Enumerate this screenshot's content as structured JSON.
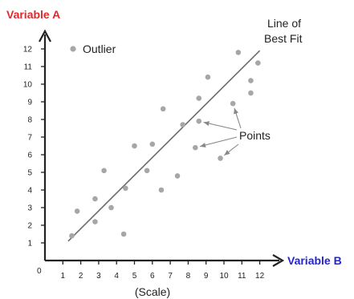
{
  "chart_data": {
    "type": "scatter",
    "xlabel": "Variable B",
    "ylabel": "Variable A",
    "x_scale_label": "(Scale)",
    "origin_label": "0",
    "x_ticks": [
      "1",
      "2",
      "3",
      "4",
      "5",
      "6",
      "7",
      "8",
      "9",
      "10",
      "11",
      "12"
    ],
    "y_ticks": [
      "1",
      "2",
      "3",
      "4",
      "5",
      "6",
      "7",
      "8",
      "9",
      "10",
      "11",
      "12"
    ],
    "xlim": [
      0,
      12.6
    ],
    "ylim": [
      0,
      12.9
    ],
    "grid": false,
    "series": [
      {
        "points": [
          {
            "x": 1.5,
            "y": 1.4
          },
          {
            "x": 1.8,
            "y": 2.8
          },
          {
            "x": 2.8,
            "y": 3.5
          },
          {
            "x": 2.8,
            "y": 2.2
          },
          {
            "x": 3.3,
            "y": 5.1
          },
          {
            "x": 3.7,
            "y": 3.0
          },
          {
            "x": 4.4,
            "y": 1.5
          },
          {
            "x": 4.5,
            "y": 4.1
          },
          {
            "x": 5.0,
            "y": 6.5
          },
          {
            "x": 5.7,
            "y": 5.1
          },
          {
            "x": 6.0,
            "y": 6.6
          },
          {
            "x": 6.5,
            "y": 4.0
          },
          {
            "x": 6.6,
            "y": 8.6
          },
          {
            "x": 7.4,
            "y": 4.8
          },
          {
            "x": 7.7,
            "y": 7.7
          },
          {
            "x": 8.4,
            "y": 6.4
          },
          {
            "x": 8.6,
            "y": 7.9
          },
          {
            "x": 8.6,
            "y": 9.2
          },
          {
            "x": 9.1,
            "y": 10.4
          },
          {
            "x": 9.8,
            "y": 5.8
          },
          {
            "x": 10.5,
            "y": 8.9
          },
          {
            "x": 10.8,
            "y": 11.8
          },
          {
            "x": 11.5,
            "y": 10.2
          },
          {
            "x": 11.5,
            "y": 9.5
          },
          {
            "x": 11.9,
            "y": 11.2
          }
        ]
      }
    ],
    "best_fit": {
      "label_line1": "Line of",
      "label_line2": "Best Fit",
      "x1": 1.3,
      "y1": 1.1,
      "x2": 12.0,
      "y2": 11.9
    },
    "annotations": {
      "outlier_label": "Outlier",
      "points_label": "Points",
      "points_arrow_targets": [
        {
          "x": 8.6,
          "y": 7.9
        },
        {
          "x": 8.4,
          "y": 6.4
        },
        {
          "x": 9.8,
          "y": 5.8
        },
        {
          "x": 10.5,
          "y": 8.9
        }
      ]
    },
    "colors": {
      "point": "#a6a6a6",
      "axis": "#222222",
      "best_fit_line": "#6b6b6b",
      "ylabel": "#e8262a",
      "xlabel": "#2323d8",
      "arrow": "#888888"
    }
  }
}
